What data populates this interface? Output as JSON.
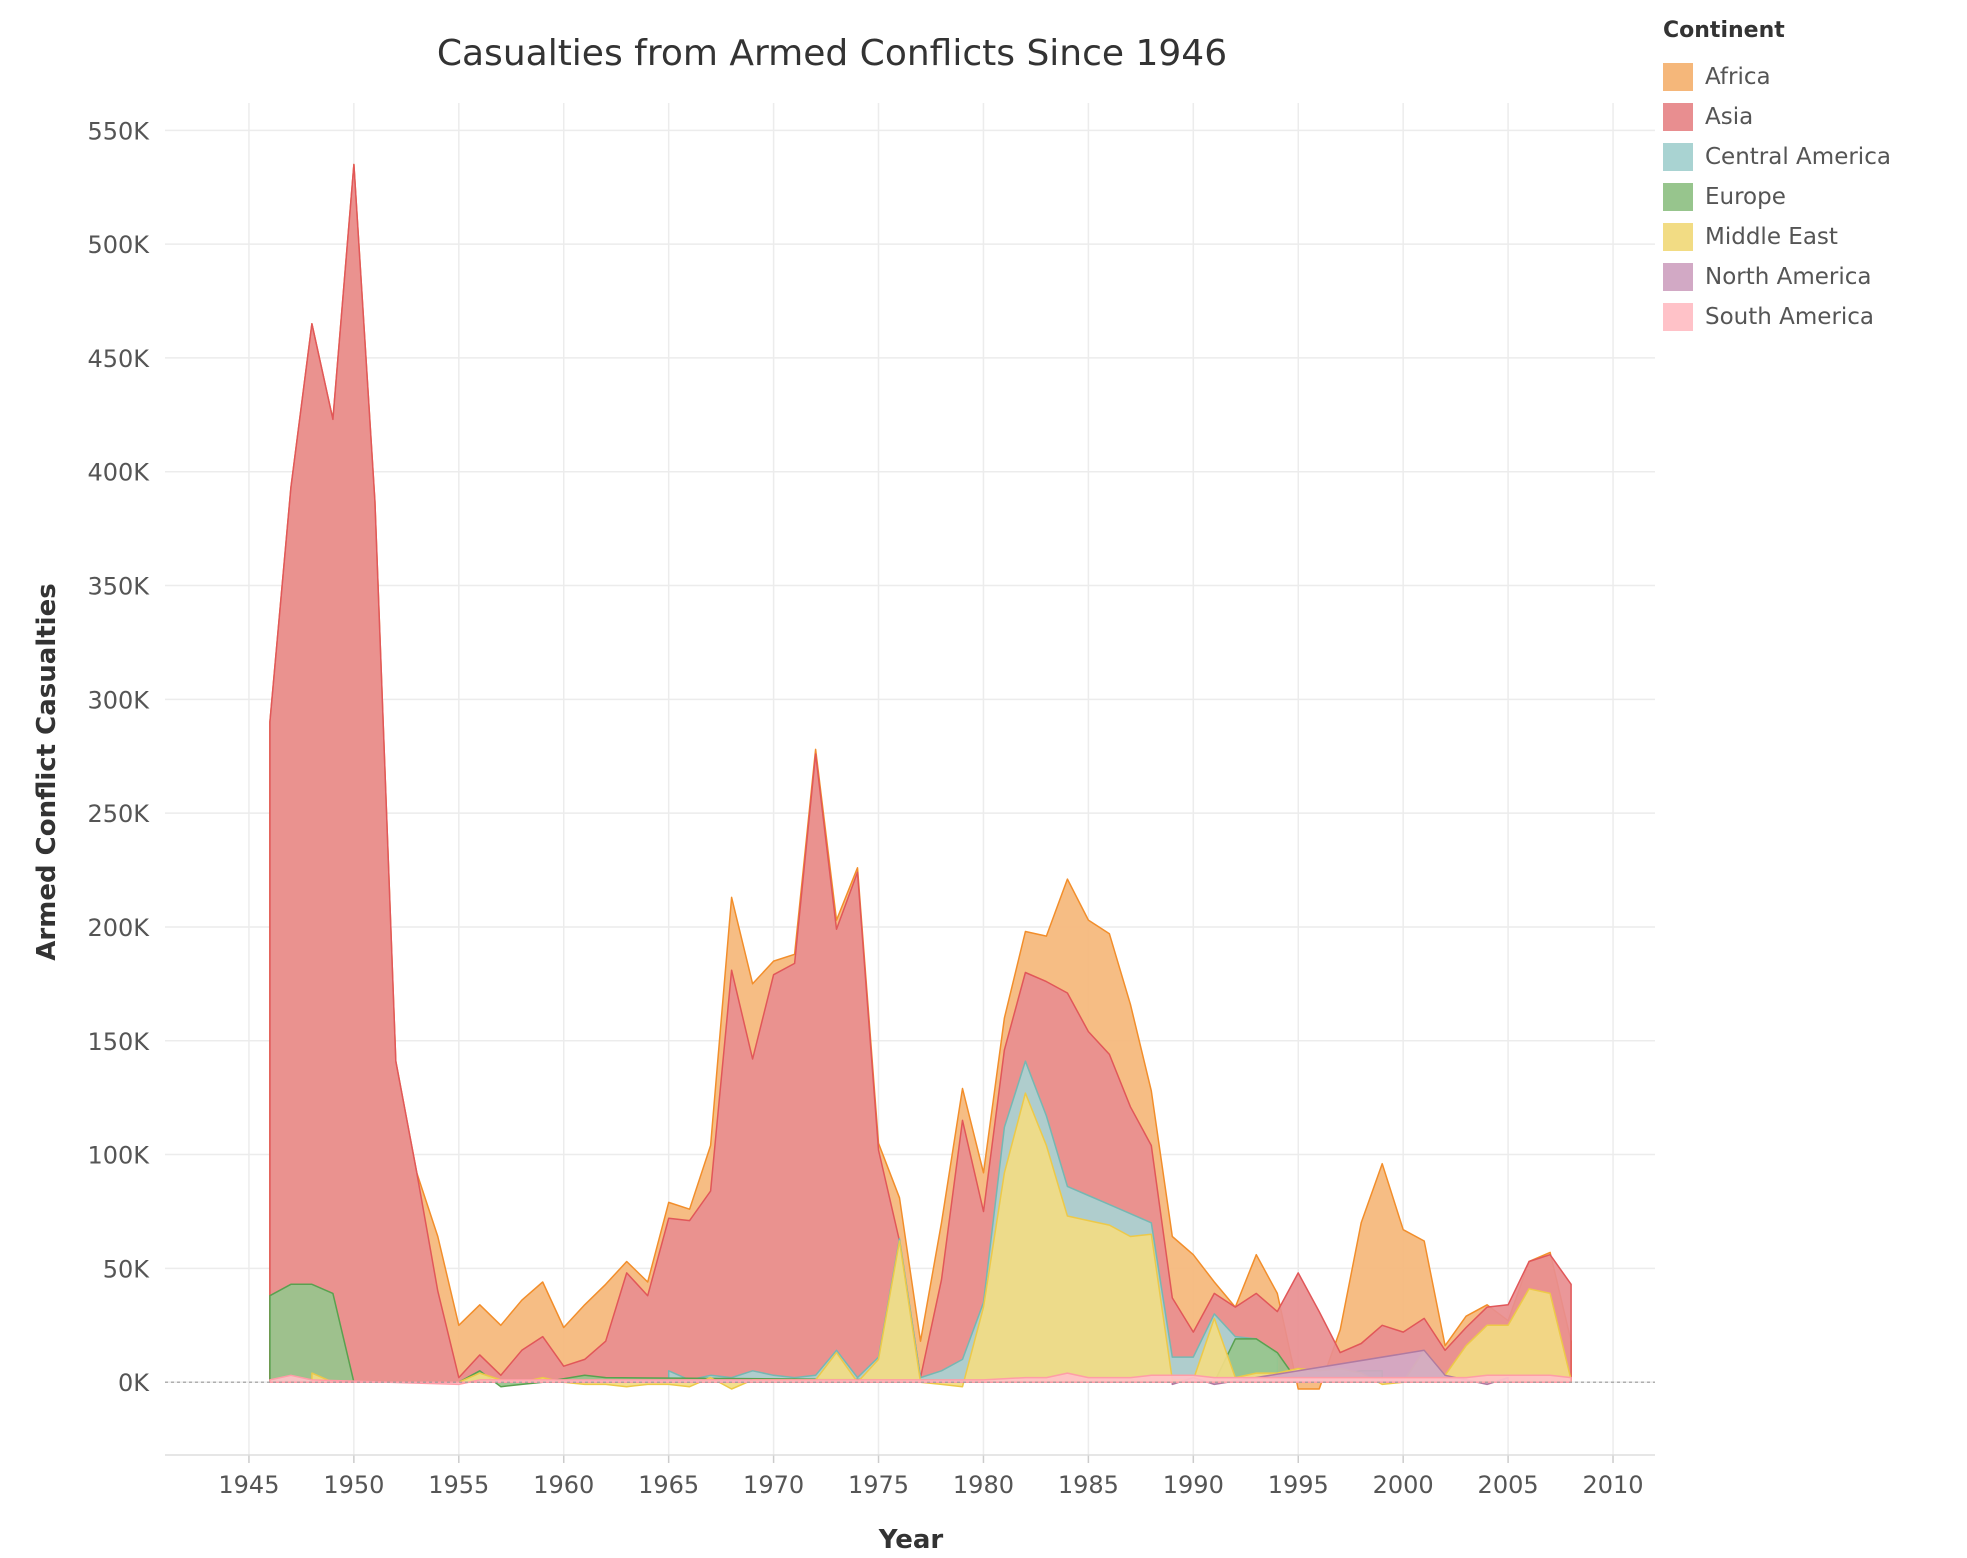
{
  "chart_data": {
    "type": "area",
    "title": "Casualties from Armed Conflicts Since 1946",
    "xlabel": "Year",
    "ylabel": "Armed Conflict Casualties",
    "xlim": [
      1941,
      2012
    ],
    "ylim": [
      -32000,
      562000
    ],
    "x_ticks": [
      1945,
      1950,
      1955,
      1960,
      1965,
      1970,
      1975,
      1980,
      1985,
      1990,
      1995,
      2000,
      2005,
      2010
    ],
    "x_tick_labels": [
      "1945",
      "1950",
      "1955",
      "1960",
      "1965",
      "1970",
      "1975",
      "1980",
      "1985",
      "1990",
      "1995",
      "2000",
      "2005",
      "2010"
    ],
    "y_ticks": [
      0,
      50000,
      100000,
      150000,
      200000,
      250000,
      300000,
      350000,
      400000,
      450000,
      500000,
      550000
    ],
    "y_tick_labels": [
      "0K",
      "50K",
      "100K",
      "150K",
      "200K",
      "250K",
      "300K",
      "350K",
      "400K",
      "450K",
      "500K",
      "550K"
    ],
    "grid": true,
    "legend_title": "Continent",
    "legend_position": "top-right",
    "series": [
      {
        "name": "Africa",
        "color": "#f5b77a",
        "stroke": "#f28e2b",
        "points": [
          [
            1946,
            290000
          ],
          [
            1947,
            393000
          ],
          [
            1948,
            465000
          ],
          [
            1949,
            423000
          ],
          [
            1950,
            535000
          ],
          [
            1951,
            387000
          ],
          [
            1952,
            141000
          ],
          [
            1953,
            92000
          ],
          [
            1954,
            64000
          ],
          [
            1955,
            25000
          ],
          [
            1956,
            34000
          ],
          [
            1957,
            25000
          ],
          [
            1958,
            36000
          ],
          [
            1959,
            44000
          ],
          [
            1960,
            24000
          ],
          [
            1961,
            34000
          ],
          [
            1962,
            43000
          ],
          [
            1963,
            53000
          ],
          [
            1964,
            44000
          ],
          [
            1965,
            79000
          ],
          [
            1966,
            76000
          ],
          [
            1967,
            104000
          ],
          [
            1968,
            213000
          ],
          [
            1969,
            175000
          ],
          [
            1970,
            185000
          ],
          [
            1971,
            188000
          ],
          [
            1972,
            278000
          ],
          [
            1973,
            203000
          ],
          [
            1974,
            226000
          ],
          [
            1975,
            105000
          ],
          [
            1976,
            81000
          ],
          [
            1977,
            18000
          ],
          [
            1978,
            70000
          ],
          [
            1979,
            129000
          ],
          [
            1980,
            92000
          ],
          [
            1981,
            160000
          ],
          [
            1982,
            198000
          ],
          [
            1983,
            196000
          ],
          [
            1984,
            221000
          ],
          [
            1985,
            203000
          ],
          [
            1986,
            197000
          ],
          [
            1987,
            166000
          ],
          [
            1988,
            128000
          ],
          [
            1989,
            64000
          ],
          [
            1990,
            56000
          ],
          [
            1991,
            44000
          ],
          [
            1992,
            33000
          ],
          [
            1993,
            56000
          ],
          [
            1994,
            39000
          ],
          [
            1995,
            -3000
          ],
          [
            1996,
            -3000
          ],
          [
            1997,
            23000
          ],
          [
            1998,
            70000
          ],
          [
            1999,
            96000
          ],
          [
            2000,
            67000
          ],
          [
            2001,
            62000
          ],
          [
            2002,
            16000
          ],
          [
            2003,
            29000
          ],
          [
            2004,
            34000
          ],
          [
            2005,
            27000
          ],
          [
            2006,
            53000
          ],
          [
            2007,
            57000
          ],
          [
            2008,
            18000
          ]
        ]
      },
      {
        "name": "Asia",
        "color": "#e88e90",
        "stroke": "#e15759",
        "points": [
          [
            1946,
            290000
          ],
          [
            1947,
            393000
          ],
          [
            1948,
            465000
          ],
          [
            1949,
            423000
          ],
          [
            1950,
            535000
          ],
          [
            1951,
            387000
          ],
          [
            1952,
            141000
          ],
          [
            1953,
            92000
          ],
          [
            1954,
            40000
          ],
          [
            1955,
            2000
          ],
          [
            1956,
            12000
          ],
          [
            1957,
            3000
          ],
          [
            1958,
            14000
          ],
          [
            1959,
            20000
          ],
          [
            1960,
            7000
          ],
          [
            1961,
            10000
          ],
          [
            1962,
            18000
          ],
          [
            1963,
            48000
          ],
          [
            1964,
            38000
          ],
          [
            1965,
            72000
          ],
          [
            1966,
            71000
          ],
          [
            1967,
            84000
          ],
          [
            1968,
            181000
          ],
          [
            1969,
            142000
          ],
          [
            1970,
            179000
          ],
          [
            1971,
            184000
          ],
          [
            1972,
            276000
          ],
          [
            1973,
            199000
          ],
          [
            1974,
            224000
          ],
          [
            1975,
            102000
          ],
          [
            1976,
            62000
          ],
          [
            1977,
            2000
          ],
          [
            1978,
            45000
          ],
          [
            1979,
            115000
          ],
          [
            1980,
            75000
          ],
          [
            1981,
            146000
          ],
          [
            1982,
            180000
          ],
          [
            1983,
            176000
          ],
          [
            1984,
            171000
          ],
          [
            1985,
            154000
          ],
          [
            1986,
            144000
          ],
          [
            1987,
            121000
          ],
          [
            1988,
            104000
          ],
          [
            1989,
            37000
          ],
          [
            1990,
            22000
          ],
          [
            1991,
            39000
          ],
          [
            1992,
            33000
          ],
          [
            1993,
            39000
          ],
          [
            1994,
            31000
          ],
          [
            1995,
            48000
          ],
          [
            1996,
            31000
          ],
          [
            1997,
            13000
          ],
          [
            1998,
            17000
          ],
          [
            1999,
            25000
          ],
          [
            2000,
            22000
          ],
          [
            2001,
            28000
          ],
          [
            2002,
            14000
          ],
          [
            2003,
            24000
          ],
          [
            2004,
            33000
          ],
          [
            2005,
            34000
          ],
          [
            2006,
            53000
          ],
          [
            2007,
            56000
          ],
          [
            2008,
            43000
          ]
        ]
      },
      {
        "name": "Central America",
        "color": "#a9d3d2",
        "stroke": "#76b7b2",
        "points": [
          [
            1965,
            5000
          ],
          [
            1966,
            1000
          ],
          [
            1967,
            3000
          ],
          [
            1968,
            2000
          ],
          [
            1969,
            5000
          ],
          [
            1970,
            3000
          ],
          [
            1971,
            2000
          ],
          [
            1972,
            3000
          ],
          [
            1973,
            14000
          ],
          [
            1974,
            2000
          ],
          [
            1975,
            11000
          ],
          [
            1976,
            63000
          ],
          [
            1977,
            2000
          ],
          [
            1978,
            5000
          ],
          [
            1979,
            10000
          ],
          [
            1980,
            35000
          ],
          [
            1981,
            112000
          ],
          [
            1982,
            141000
          ],
          [
            1983,
            117000
          ],
          [
            1984,
            86000
          ],
          [
            1985,
            82000
          ],
          [
            1986,
            78000
          ],
          [
            1987,
            74000
          ],
          [
            1988,
            70000
          ],
          [
            1989,
            11000
          ],
          [
            1990,
            11000
          ],
          [
            1991,
            30000
          ],
          [
            1992,
            20000
          ],
          [
            1993,
            19000
          ],
          [
            1994,
            12000
          ]
        ]
      },
      {
        "name": "Europe",
        "color": "#97c58d",
        "stroke": "#59a14f",
        "points": [
          [
            1946,
            38000
          ],
          [
            1947,
            43000
          ],
          [
            1948,
            43000
          ],
          [
            1949,
            39000
          ],
          [
            1950,
            0
          ],
          [
            1955,
            0
          ],
          [
            1956,
            5000
          ],
          [
            1957,
            -2000
          ],
          [
            1958,
            -1000
          ],
          [
            1959,
            0
          ],
          [
            1961,
            3000
          ],
          [
            1962,
            2000
          ],
          [
            1991,
            0
          ],
          [
            1992,
            19000
          ],
          [
            1993,
            19000
          ],
          [
            1994,
            13000
          ],
          [
            1995,
            0
          ],
          [
            1998,
            5000
          ],
          [
            1999,
            5000
          ]
        ]
      },
      {
        "name": "Middle East",
        "color": "#f2dc84",
        "stroke": "#edc948",
        "points": [
          [
            1948,
            4000
          ],
          [
            1949,
            0
          ],
          [
            1955,
            0
          ],
          [
            1956,
            4000
          ],
          [
            1957,
            1000
          ],
          [
            1958,
            0
          ],
          [
            1959,
            2000
          ],
          [
            1960,
            0
          ],
          [
            1961,
            -1000
          ],
          [
            1962,
            -1000
          ],
          [
            1963,
            -2000
          ],
          [
            1964,
            -1000
          ],
          [
            1965,
            -1000
          ],
          [
            1966,
            -2000
          ],
          [
            1967,
            2000
          ],
          [
            1968,
            -3000
          ],
          [
            1969,
            1000
          ],
          [
            1970,
            1000
          ],
          [
            1971,
            1000
          ],
          [
            1972,
            1000
          ],
          [
            1973,
            13000
          ],
          [
            1974,
            0
          ],
          [
            1975,
            10000
          ],
          [
            1976,
            62000
          ],
          [
            1977,
            0
          ],
          [
            1978,
            -1000
          ],
          [
            1979,
            -2000
          ],
          [
            1980,
            33000
          ],
          [
            1981,
            92000
          ],
          [
            1982,
            127000
          ],
          [
            1983,
            104000
          ],
          [
            1984,
            73000
          ],
          [
            1985,
            71000
          ],
          [
            1986,
            69000
          ],
          [
            1987,
            64000
          ],
          [
            1988,
            65000
          ],
          [
            1989,
            1000
          ],
          [
            1990,
            1000
          ],
          [
            1991,
            28000
          ],
          [
            1992,
            2000
          ],
          [
            1993,
            4000
          ],
          [
            1994,
            4000
          ],
          [
            1995,
            6000
          ],
          [
            1996,
            5000
          ],
          [
            1997,
            6000
          ],
          [
            1998,
            4000
          ],
          [
            1999,
            -1000
          ],
          [
            2000,
            0
          ],
          [
            2001,
            14000
          ],
          [
            2002,
            3000
          ],
          [
            2003,
            16000
          ],
          [
            2004,
            25000
          ],
          [
            2005,
            25000
          ],
          [
            2006,
            41000
          ],
          [
            2007,
            39000
          ],
          [
            2008,
            1000
          ]
        ]
      },
      {
        "name": "North America",
        "color": "#d2a9c5",
        "stroke": "#b07aa1",
        "points": [
          [
            1989,
            -1000
          ],
          [
            1990,
            2000
          ],
          [
            1991,
            -1000
          ],
          [
            2001,
            14000
          ],
          [
            2002,
            3000
          ],
          [
            2004,
            -1000
          ],
          [
            2005,
            2000
          ]
        ]
      },
      {
        "name": "South America",
        "color": "#ffc2c8",
        "stroke": "#ff9da7",
        "points": [
          [
            1946,
            1000
          ],
          [
            1947,
            3000
          ],
          [
            1948,
            1000
          ],
          [
            1955,
            -1000
          ],
          [
            1956,
            1000
          ],
          [
            1965,
            1000
          ],
          [
            1970,
            1000
          ],
          [
            1975,
            1000
          ],
          [
            1980,
            1000
          ],
          [
            1982,
            2000
          ],
          [
            1983,
            2000
          ],
          [
            1984,
            4000
          ],
          [
            1985,
            2000
          ],
          [
            1986,
            2000
          ],
          [
            1987,
            2000
          ],
          [
            1988,
            3000
          ],
          [
            1989,
            3000
          ],
          [
            1990,
            3000
          ],
          [
            1991,
            2000
          ],
          [
            1992,
            2000
          ],
          [
            1993,
            2000
          ],
          [
            1994,
            2000
          ],
          [
            1995,
            2000
          ],
          [
            1996,
            2000
          ],
          [
            1997,
            2000
          ],
          [
            1998,
            2000
          ],
          [
            1999,
            2000
          ],
          [
            2000,
            2000
          ],
          [
            2001,
            2000
          ],
          [
            2002,
            2000
          ],
          [
            2003,
            2000
          ],
          [
            2004,
            3000
          ],
          [
            2005,
            3000
          ],
          [
            2006,
            3000
          ],
          [
            2007,
            3000
          ],
          [
            2008,
            2000
          ]
        ]
      }
    ]
  }
}
